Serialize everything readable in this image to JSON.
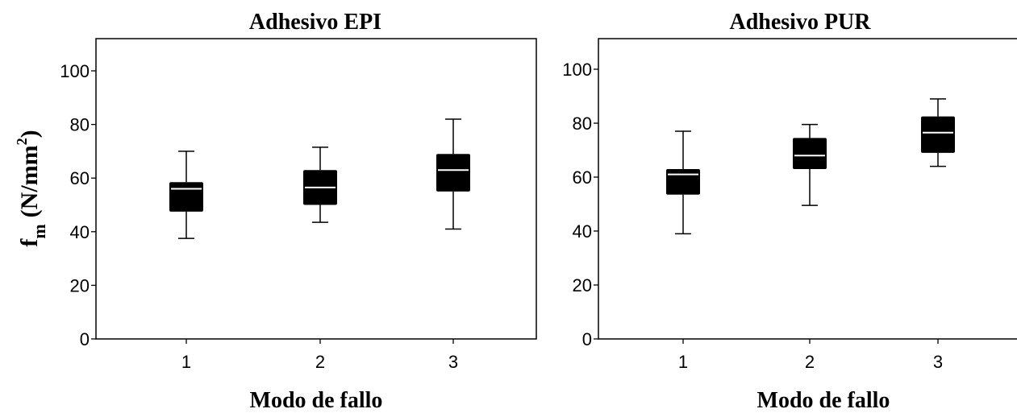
{
  "chart_data": [
    {
      "type": "box",
      "title": "Adhesivo EPI",
      "xlabel": "Modo de fallo",
      "ylabel_main": "f",
      "ylabel_sub": "m",
      "ylabel_unit": "(N/mm",
      "ylabel_sup": "2",
      "ylabel_close": ")",
      "ylim": [
        0,
        110
      ],
      "yticks": [
        0,
        20,
        40,
        60,
        80,
        100
      ],
      "categories": [
        "1",
        "2",
        "3"
      ],
      "boxes": [
        {
          "category": "1",
          "whisker_low": 37.5,
          "q1": 47.5,
          "median": 56,
          "q3": 58.5,
          "whisker_high": 70
        },
        {
          "category": "2",
          "whisker_low": 43.5,
          "q1": 50,
          "median": 56.5,
          "q3": 63,
          "whisker_high": 71.5
        },
        {
          "category": "3",
          "whisker_low": 41,
          "q1": 55,
          "median": 63,
          "q3": 69,
          "whisker_high": 82
        }
      ],
      "colors": {
        "box": "#000000",
        "median": "#ffffff"
      }
    },
    {
      "type": "box",
      "title": "Adhesivo PUR",
      "xlabel": "Modo de fallo",
      "ylim": [
        0,
        110
      ],
      "yticks": [
        0,
        20,
        40,
        60,
        80,
        100
      ],
      "categories": [
        "1",
        "2",
        "3"
      ],
      "boxes": [
        {
          "category": "1",
          "whisker_low": 39,
          "q1": 53.5,
          "median": 61,
          "q3": 63,
          "whisker_high": 77
        },
        {
          "category": "2",
          "whisker_low": 49.5,
          "q1": 63,
          "median": 68,
          "q3": 74.5,
          "whisker_high": 79.5
        },
        {
          "category": "3",
          "whisker_low": 64,
          "q1": 69,
          "median": 76.5,
          "q3": 82.5,
          "whisker_high": 89
        }
      ],
      "colors": {
        "box": "#000000",
        "median": "#ffffff"
      }
    }
  ]
}
